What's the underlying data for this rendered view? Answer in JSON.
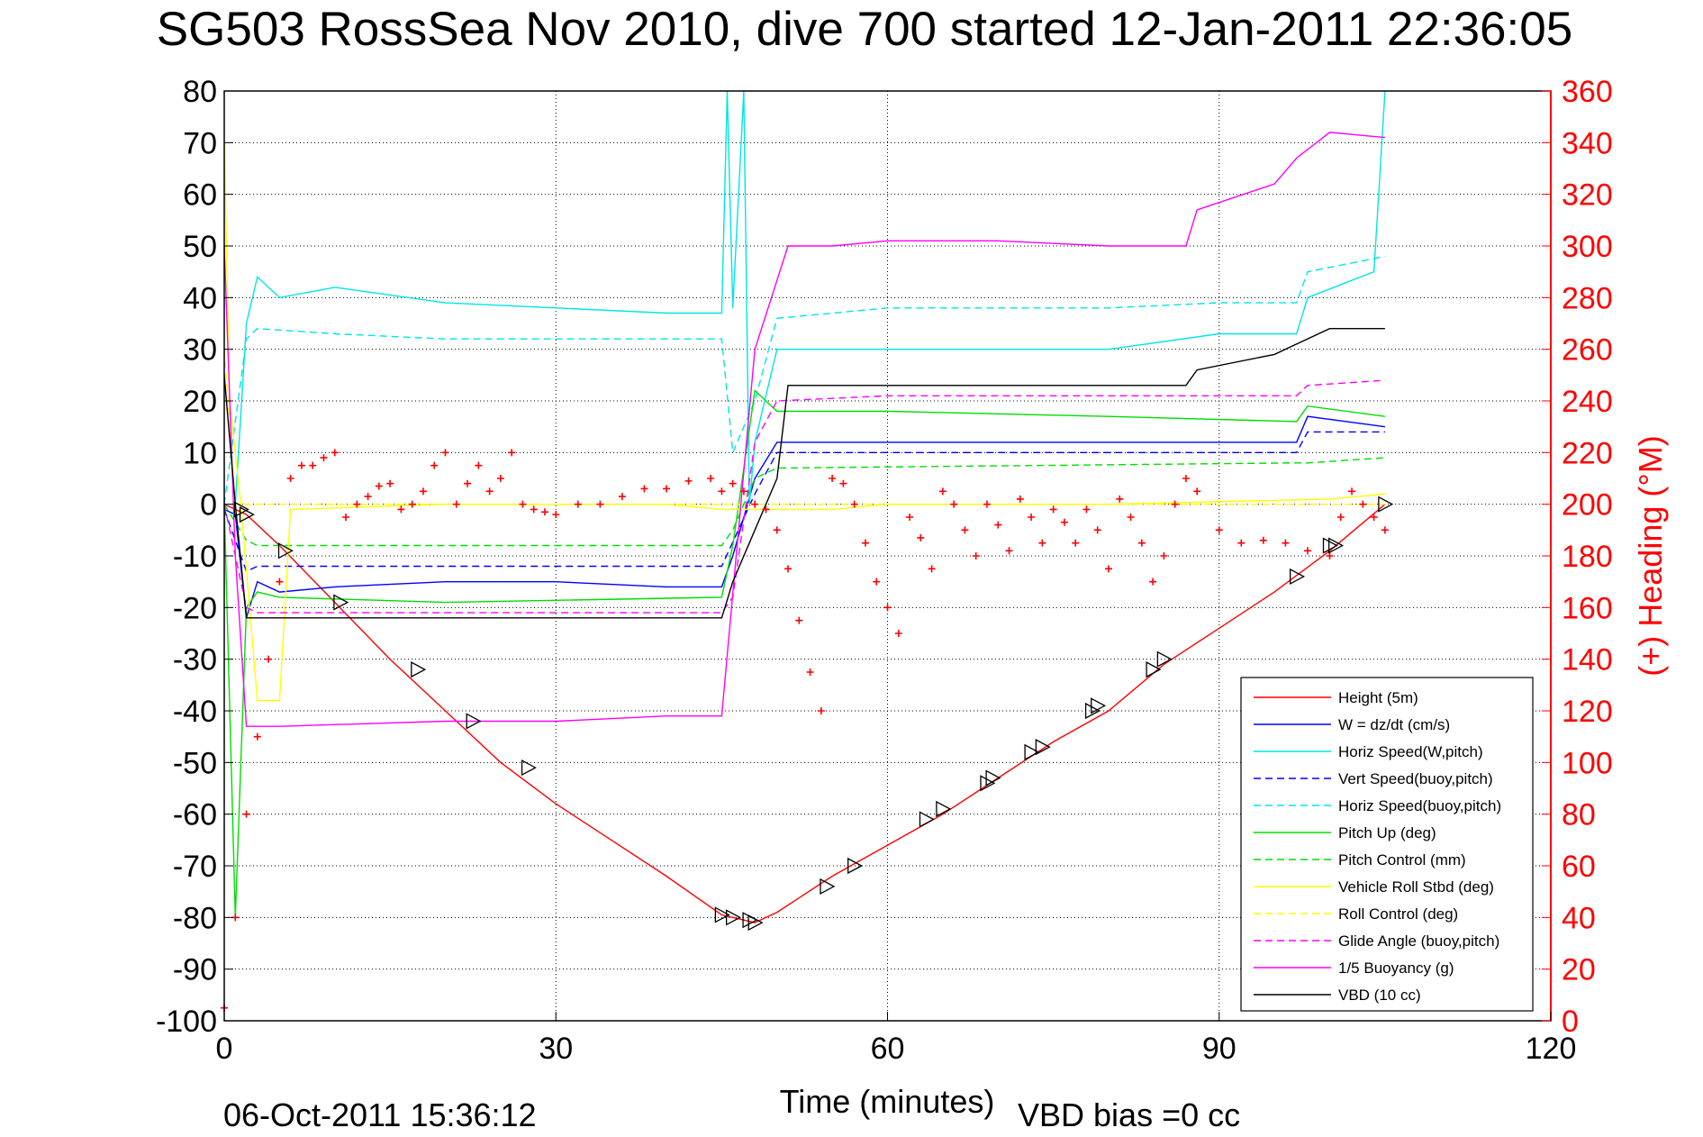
{
  "title": "SG503 RossSea Nov 2010, dive 700 started 12-Jan-2011 22:36:05",
  "footer": {
    "timestamp": "06-Oct-2011 15:36:12",
    "vbd_bias": "VBD bias =0 cc"
  },
  "chart_data": {
    "type": "line",
    "title": "SG503 RossSea Nov 2010, dive 700 started 12-Jan-2011 22:36:05",
    "xlabel": "Time (minutes)",
    "ylabel": "",
    "y2label": "(+) Heading (°M)",
    "xlim": [
      0,
      120
    ],
    "ylim": [
      -100,
      80
    ],
    "y2lim": [
      0,
      360
    ],
    "xticks": [
      0,
      30,
      60,
      90,
      120
    ],
    "yticks": [
      80,
      70,
      60,
      50,
      40,
      30,
      20,
      10,
      0,
      -10,
      -20,
      -30,
      -40,
      -50,
      -60,
      -70,
      -80,
      -90,
      -100
    ],
    "y2ticks": [
      360,
      340,
      320,
      300,
      280,
      260,
      240,
      220,
      200,
      180,
      160,
      140,
      120,
      100,
      80,
      60,
      40,
      20,
      0
    ],
    "grid": true,
    "legend_position": "bottom-right",
    "series": [
      {
        "name": "Height (5m)",
        "color": "#ff0000",
        "style": "solid",
        "x": [
          0,
          2,
          5,
          10,
          15,
          20,
          25,
          30,
          35,
          40,
          45,
          46,
          47,
          48,
          49,
          50,
          55,
          60,
          65,
          70,
          75,
          80,
          85,
          90,
          95,
          100,
          105
        ],
        "y": [
          0,
          -2,
          -8,
          -19,
          -30,
          -40,
          -50,
          -58,
          -65,
          -72,
          -79.5,
          -80,
          -80.5,
          -81,
          -80,
          -79,
          -72,
          -66,
          -60,
          -53,
          -46,
          -40,
          -31,
          -24,
          -17,
          -9,
          0
        ]
      },
      {
        "name": "W = dz/dt (cm/s)",
        "color": "#0000ff",
        "style": "solid",
        "x": [
          0,
          1,
          2,
          3,
          5,
          10,
          20,
          30,
          40,
          45,
          46,
          48,
          50,
          55,
          60,
          70,
          80,
          90,
          97,
          98,
          105
        ],
        "y": [
          -1,
          -2,
          -22,
          -15,
          -17,
          -16,
          -15,
          -15,
          -16,
          -16,
          -10,
          5,
          12,
          12,
          12,
          12,
          12,
          12,
          12,
          17,
          15
        ]
      },
      {
        "name": "Horiz Speed(W,pitch)",
        "color": "#00e5e5",
        "style": "solid",
        "x": [
          0,
          1,
          2,
          3,
          5,
          10,
          20,
          30,
          40,
          45,
          45.5,
          46,
          47,
          47.5,
          48,
          50,
          55,
          60,
          70,
          80,
          90,
          97,
          98,
          104,
          105
        ],
        "y": [
          0,
          0,
          35,
          44,
          40,
          42,
          39,
          38,
          37,
          37,
          80,
          38,
          80,
          0,
          12,
          30,
          30,
          30,
          30,
          30,
          33,
          33,
          40,
          45,
          80
        ]
      },
      {
        "name": "Vert Speed(buoy,pitch)",
        "color": "#0000ff",
        "style": "dashed",
        "x": [
          0,
          2,
          3,
          5,
          20,
          40,
          45,
          48,
          50,
          60,
          80,
          97,
          98,
          105
        ],
        "y": [
          -1,
          -13,
          -12,
          -12,
          -12,
          -12,
          -12,
          2,
          10,
          10,
          10,
          10,
          14,
          14
        ]
      },
      {
        "name": "Horiz Speed(buoy,pitch)",
        "color": "#00e5e5",
        "style": "dashed",
        "x": [
          0,
          2,
          3,
          10,
          20,
          30,
          40,
          45,
          46,
          48,
          50,
          60,
          80,
          90,
          97,
          98,
          105
        ],
        "y": [
          0,
          32,
          34,
          33,
          32,
          32,
          32,
          32,
          10,
          20,
          36,
          38,
          38,
          39,
          39,
          45,
          48
        ]
      },
      {
        "name": "Pitch Up (deg)",
        "color": "#00dd00",
        "style": "solid",
        "x": [
          0,
          1,
          2,
          3,
          5,
          20,
          45,
          46,
          48,
          50,
          60,
          80,
          97,
          98,
          105
        ],
        "y": [
          0,
          -80,
          -20,
          -17,
          -18,
          -19,
          -18,
          -8,
          22,
          18,
          18,
          17,
          16,
          19,
          17
        ]
      },
      {
        "name": "Pitch Control (mm)",
        "color": "#00dd00",
        "style": "dashed",
        "x": [
          0,
          2,
          3,
          45,
          46,
          48,
          50,
          97,
          98,
          105
        ],
        "y": [
          0,
          -7,
          -8,
          -8,
          -5,
          5,
          7,
          8,
          8,
          9
        ]
      },
      {
        "name": "Vehicle Roll Stbd (deg)",
        "color": "#ffff00",
        "style": "solid",
        "x": [
          0,
          0.5,
          1.5,
          3,
          5,
          6,
          20,
          40,
          45,
          48,
          55,
          60,
          80,
          100,
          105
        ],
        "y": [
          70,
          20,
          0,
          -38,
          -38,
          -1,
          0,
          0,
          -1,
          -1,
          -1,
          0,
          0,
          1,
          2
        ]
      },
      {
        "name": "Roll Control (deg)",
        "color": "#ffff00",
        "style": "dashed",
        "x": [
          0,
          1,
          2,
          30,
          45,
          50,
          105
        ],
        "y": [
          30,
          0,
          0,
          0,
          0,
          0,
          0
        ]
      },
      {
        "name": "Glide Angle (buoy,pitch)",
        "color": "#ff00ff",
        "style": "dashed",
        "x": [
          0,
          2,
          3,
          20,
          45,
          46,
          48,
          50,
          60,
          80,
          97,
          98,
          105
        ],
        "y": [
          0,
          -20,
          -21,
          -21,
          -21,
          -18,
          12,
          20,
          21,
          21,
          21,
          23,
          24
        ]
      },
      {
        "name": "1/5 Buoyancy (g)",
        "color": "#ff00ff",
        "style": "solid",
        "x": [
          0,
          1,
          2,
          3,
          5,
          20,
          30,
          40,
          45,
          48,
          51,
          55,
          60,
          70,
          80,
          87,
          88,
          95,
          97,
          100,
          105
        ],
        "y": [
          50,
          -10,
          -43,
          -43,
          -43,
          -42,
          -42,
          -41,
          -41,
          30,
          50,
          50,
          51,
          51,
          50,
          50,
          57,
          62,
          67,
          72,
          71
        ]
      },
      {
        "name": "VBD (10 cc)",
        "color": "#000000",
        "style": "solid",
        "x": [
          0,
          1,
          2,
          3,
          10,
          20,
          40,
          45,
          46,
          48,
          50,
          51,
          60,
          70,
          80,
          87,
          88,
          95,
          97,
          100,
          105
        ],
        "y": [
          25,
          0,
          -22,
          -22,
          -22,
          -22,
          -22,
          -22,
          -15,
          -5,
          5,
          23,
          23,
          23,
          23,
          23,
          26,
          29,
          31,
          34,
          34
        ]
      }
    ],
    "heading": {
      "name": "(+) Heading",
      "color": "#ff0000",
      "marker": "+",
      "x": [
        0,
        1,
        2,
        3,
        4,
        5,
        6,
        7,
        8,
        9,
        10,
        11,
        12,
        13,
        14,
        15,
        16,
        17,
        18,
        19,
        20,
        21,
        22,
        23,
        24,
        25,
        26,
        27,
        28,
        29,
        30,
        32,
        34,
        36,
        38,
        40,
        42,
        44,
        45,
        46,
        47,
        48,
        49,
        50,
        51,
        52,
        53,
        54,
        55,
        56,
        57,
        58,
        59,
        60,
        61,
        62,
        63,
        64,
        65,
        66,
        67,
        68,
        69,
        70,
        71,
        72,
        73,
        74,
        75,
        76,
        77,
        78,
        79,
        80,
        81,
        82,
        83,
        84,
        85,
        86,
        87,
        88,
        90,
        92,
        94,
        96,
        98,
        100,
        101,
        102,
        103,
        104,
        105
      ],
      "y": [
        5,
        40,
        80,
        110,
        140,
        170,
        210,
        215,
        215,
        218,
        220,
        195,
        200,
        203,
        207,
        208,
        198,
        200,
        205,
        215,
        220,
        200,
        208,
        215,
        205,
        210,
        220,
        200,
        198,
        197,
        196,
        200,
        200,
        203,
        206,
        206,
        209,
        210,
        205,
        208,
        205,
        200,
        198,
        190,
        175,
        155,
        135,
        120,
        210,
        208,
        200,
        185,
        170,
        160,
        150,
        195,
        187,
        175,
        205,
        200,
        190,
        180,
        200,
        192,
        182,
        202,
        195,
        185,
        198,
        193,
        185,
        198,
        190,
        175,
        202,
        195,
        185,
        170,
        180,
        200,
        210,
        205,
        190,
        185,
        186,
        185,
        182,
        180,
        195,
        205,
        200,
        195,
        190
      ]
    },
    "height_markers": {
      "name": "Height markers",
      "color": "#000000",
      "x": [
        1.5,
        2,
        5.5,
        10.5,
        17.5,
        22.5,
        27.5,
        45,
        46,
        47.5,
        48,
        54.5,
        57,
        63.5,
        65,
        69,
        69.5,
        73,
        74,
        78.5,
        79,
        84,
        85,
        97,
        100,
        100.5,
        105
      ],
      "y": [
        -1,
        -2,
        -9,
        -19,
        -32,
        -42,
        -51,
        -79.5,
        -80,
        -80.5,
        -81,
        -74,
        -70,
        -61,
        -59,
        -54,
        -53,
        -48,
        -47,
        -40,
        -39,
        -32,
        -30,
        -14,
        -8,
        -8,
        0
      ]
    }
  }
}
